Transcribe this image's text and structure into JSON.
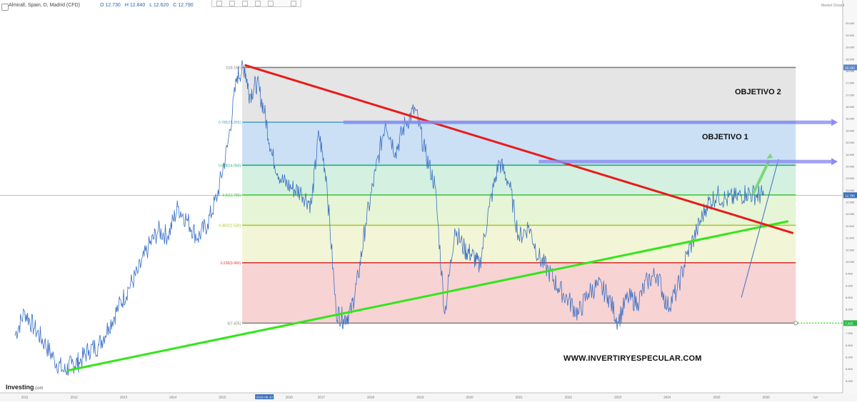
{
  "header": {
    "symbol": "Almirall, Spain, D, Madrid (CFD)",
    "ohlc": [
      "O 12.730",
      "H 12.840",
      "L 12.620",
      "C 12.790"
    ],
    "market_status": "Market Closed"
  },
  "logo": {
    "name": "Investing",
    "suffix": ".com"
  },
  "watermark": "WWW.INVERTIRYESPECULAR.COM",
  "targets": [
    "OBJETIVO 2",
    "OBJETIVO 1"
  ],
  "colors": {
    "price_line": "#3a70c4",
    "resistance_trendline": "#e81b1b",
    "support_trendline": "#33e51a",
    "target_arrow": "#8a8df0",
    "fib_zone_top": "#dcdcdc",
    "fib_zone_786": "#b9d5f1",
    "fib_zone_618": "#c4ebd5",
    "fib_zone_5": "#dcf2c8",
    "fib_zone_382": "#eef2c8",
    "fib_zone_236": "#f4c4c4"
  },
  "chart_data": {
    "type": "line",
    "title": "Almirall, Spain, D, Madrid (CFD)",
    "xlabel": "",
    "ylabel": "",
    "ylim": [
      4.5,
      20.5
    ],
    "x_ticks": [
      "2011",
      "2012",
      "2013",
      "2014",
      "2015",
      "2016-06-10",
      "2016",
      "2017",
      "2018",
      "2019",
      "2020",
      "2021",
      "2022",
      "2023",
      "2024",
      "2025",
      "2026",
      "Apr"
    ],
    "y_ticks": [
      "20.000",
      "19.500",
      "19.000",
      "18.500",
      "18.000",
      "17.500",
      "17.000",
      "16.500",
      "16.000",
      "15.500",
      "15.000",
      "14.500",
      "14.000",
      "13.500",
      "13.000",
      "12.500",
      "12.000",
      "11.500",
      "11.000",
      "10.500",
      "10.000",
      "9.500",
      "9.000",
      "8.500",
      "8.000",
      "7.500",
      "7.000",
      "6.500",
      "6.000",
      "5.500",
      "5.000"
    ],
    "last_price": {
      "value": 12.79,
      "label": "12.790"
    },
    "fib_top_price_label": "18.150",
    "fib_bottom_price_label": "7.425",
    "fibonacci": [
      {
        "ratio": "1",
        "price": 18.15,
        "label": "1(18.150)",
        "color": "#7f7f7f"
      },
      {
        "ratio": "0.786",
        "price": 15.855,
        "label": "0.786(15.855)",
        "color": "#4aa3d8"
      },
      {
        "ratio": "0.618",
        "price": 14.05,
        "label": "0.618(14.050)",
        "color": "#22b07a"
      },
      {
        "ratio": "0.5",
        "price": 12.8,
        "label": "0.5(12.790)",
        "color": "#33c033"
      },
      {
        "ratio": "0.382",
        "price": 11.53,
        "label": "0.382(11.530)",
        "color": "#a8c820"
      },
      {
        "ratio": "0.236",
        "price": 9.96,
        "label": "0.236(9.960)",
        "color": "#d33a3a"
      },
      {
        "ratio": "0",
        "price": 7.425,
        "label": "0(7.425)",
        "color": "#7f7f7f"
      }
    ],
    "series": [
      {
        "x": [
          2010.8,
          2011.0,
          2011.2,
          2011.4,
          2011.6,
          2011.8,
          2011.95,
          2012.1,
          2012.3,
          2012.5,
          2012.7,
          2012.9,
          2013.1,
          2013.3,
          2013.5,
          2013.7,
          2013.9,
          2014.1,
          2014.3,
          2014.5,
          2014.7,
          2014.9,
          2015.1,
          2015.3,
          2015.45,
          2015.55,
          2015.7,
          2015.85,
          2016.0,
          2016.2,
          2016.4,
          2016.6,
          2016.8,
          2016.95,
          2017.1,
          2017.3,
          2017.45,
          2017.6,
          2017.75,
          2017.9,
          2018.1,
          2018.3,
          2018.5,
          2018.7,
          2018.9,
          2019.1,
          2019.3,
          2019.5,
          2019.7,
          2019.9,
          2020.05,
          2020.2,
          2020.4,
          2020.6,
          2020.8,
          2021.0,
          2021.2,
          2021.4,
          2021.6,
          2021.8,
          2022.0,
          2022.2,
          2022.4,
          2022.6,
          2022.8,
          2023.0,
          2023.2,
          2023.4,
          2023.6,
          2023.8,
          2024.0,
          2024.2,
          2024.4,
          2024.6,
          2024.8,
          2025.0,
          2025.2,
          2025.4,
          2025.6,
          2025.8,
          2025.95
        ],
        "values": [
          6.9,
          7.9,
          7.2,
          6.6,
          5.9,
          5.4,
          5.7,
          5.8,
          6.3,
          6.5,
          7.3,
          8.1,
          8.9,
          9.6,
          10.6,
          11.3,
          11.1,
          12.3,
          11.7,
          11.0,
          11.6,
          12.8,
          14.8,
          17.8,
          18.15,
          17.0,
          17.5,
          16.3,
          14.5,
          13.4,
          13.1,
          12.9,
          12.4,
          15.4,
          13.6,
          7.9,
          7.6,
          7.9,
          9.4,
          11.6,
          13.8,
          15.9,
          14.6,
          15.8,
          16.4,
          14.6,
          13.2,
          7.8,
          11.4,
          10.5,
          10.3,
          9.8,
          12.3,
          14.2,
          13.3,
          11.0,
          11.5,
          10.2,
          9.6,
          8.9,
          8.4,
          7.8,
          8.7,
          9.0,
          8.6,
          7.5,
          8.5,
          8.3,
          9.2,
          9.5,
          8.1,
          8.8,
          10.3,
          11.3,
          12.4,
          12.8,
          12.6,
          12.7,
          12.9,
          12.8,
          12.79
        ]
      }
    ]
  }
}
